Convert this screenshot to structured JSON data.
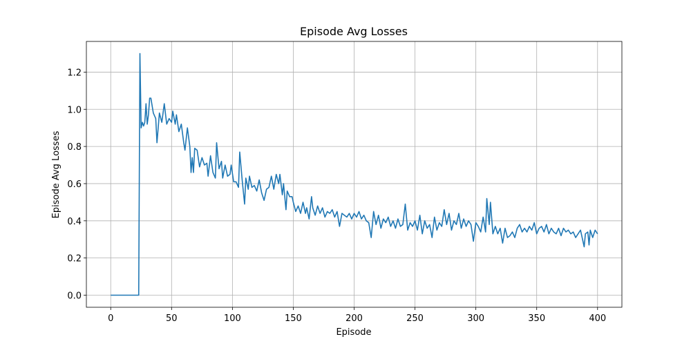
{
  "chart_data": {
    "type": "line",
    "title": "Episode Avg Losses",
    "xlabel": "Episode",
    "ylabel": "Episode Avg Losses",
    "x": [
      0,
      23,
      24,
      25,
      26,
      27,
      28,
      29,
      30,
      31,
      32,
      33,
      35,
      37,
      38,
      40,
      42,
      44,
      46,
      48,
      50,
      51,
      53,
      54,
      56,
      58,
      60,
      61,
      63,
      65,
      66,
      67,
      68,
      69,
      71,
      73,
      75,
      77,
      79,
      80,
      82,
      84,
      86,
      87,
      89,
      91,
      92,
      94,
      96,
      98,
      99,
      101,
      103,
      105,
      106,
      108,
      110,
      111,
      113,
      114,
      116,
      118,
      120,
      122,
      124,
      126,
      128,
      130,
      132,
      134,
      136,
      138,
      139,
      141,
      142,
      144,
      145,
      147,
      149,
      150,
      152,
      154,
      156,
      158,
      160,
      161,
      163,
      165,
      166,
      168,
      170,
      172,
      174,
      176,
      178,
      180,
      182,
      184,
      186,
      188,
      190,
      192,
      194,
      196,
      198,
      200,
      202,
      204,
      206,
      208,
      210,
      212,
      214,
      216,
      218,
      220,
      222,
      224,
      226,
      228,
      230,
      232,
      234,
      236,
      238,
      240,
      242,
      244,
      246,
      248,
      250,
      252,
      254,
      256,
      258,
      260,
      262,
      264,
      266,
      268,
      270,
      272,
      274,
      276,
      278,
      280,
      282,
      284,
      286,
      288,
      290,
      292,
      294,
      296,
      298,
      300,
      302,
      304,
      306,
      308,
      309,
      311,
      312,
      314,
      316,
      318,
      320,
      322,
      324,
      326,
      328,
      330,
      332,
      334,
      336,
      338,
      340,
      342,
      344,
      346,
      348,
      350,
      352,
      354,
      356,
      358,
      360,
      362,
      364,
      366,
      368,
      370,
      372,
      374,
      376,
      378,
      380,
      382,
      384,
      386,
      388,
      389,
      390,
      392,
      393,
      394,
      396,
      398,
      400
    ],
    "series": [
      {
        "name": "Episode Avg Losses",
        "color": "#1f77b4",
        "values": [
          0,
          0,
          1.3,
          0.9,
          0.93,
          0.91,
          0.93,
          1.03,
          0.92,
          0.97,
          1.06,
          1.06,
          0.98,
          0.95,
          0.82,
          0.98,
          0.93,
          1.03,
          0.92,
          0.95,
          0.93,
          0.99,
          0.92,
          0.97,
          0.88,
          0.92,
          0.82,
          0.78,
          0.9,
          0.8,
          0.66,
          0.74,
          0.66,
          0.79,
          0.78,
          0.69,
          0.74,
          0.7,
          0.71,
          0.64,
          0.75,
          0.66,
          0.63,
          0.82,
          0.68,
          0.72,
          0.63,
          0.7,
          0.64,
          0.65,
          0.7,
          0.61,
          0.61,
          0.58,
          0.77,
          0.62,
          0.49,
          0.63,
          0.57,
          0.64,
          0.58,
          0.59,
          0.56,
          0.62,
          0.55,
          0.51,
          0.57,
          0.58,
          0.64,
          0.57,
          0.65,
          0.6,
          0.65,
          0.54,
          0.6,
          0.46,
          0.56,
          0.53,
          0.53,
          0.5,
          0.45,
          0.48,
          0.44,
          0.5,
          0.44,
          0.47,
          0.41,
          0.53,
          0.47,
          0.43,
          0.48,
          0.44,
          0.47,
          0.42,
          0.45,
          0.44,
          0.46,
          0.42,
          0.45,
          0.37,
          0.44,
          0.43,
          0.42,
          0.44,
          0.41,
          0.44,
          0.42,
          0.45,
          0.41,
          0.43,
          0.4,
          0.39,
          0.31,
          0.45,
          0.38,
          0.43,
          0.36,
          0.41,
          0.39,
          0.42,
          0.37,
          0.4,
          0.36,
          0.41,
          0.37,
          0.38,
          0.49,
          0.35,
          0.39,
          0.37,
          0.4,
          0.35,
          0.43,
          0.33,
          0.4,
          0.36,
          0.38,
          0.31,
          0.42,
          0.35,
          0.39,
          0.37,
          0.46,
          0.38,
          0.44,
          0.35,
          0.4,
          0.38,
          0.44,
          0.36,
          0.41,
          0.37,
          0.4,
          0.38,
          0.29,
          0.39,
          0.37,
          0.34,
          0.42,
          0.34,
          0.52,
          0.38,
          0.5,
          0.33,
          0.37,
          0.33,
          0.36,
          0.28,
          0.36,
          0.31,
          0.32,
          0.34,
          0.31,
          0.36,
          0.38,
          0.34,
          0.36,
          0.34,
          0.37,
          0.35,
          0.39,
          0.33,
          0.36,
          0.37,
          0.34,
          0.38,
          0.33,
          0.36,
          0.34,
          0.33,
          0.36,
          0.32,
          0.36,
          0.34,
          0.35,
          0.33,
          0.34,
          0.31,
          0.33,
          0.35,
          0.29,
          0.26,
          0.33,
          0.34,
          0.27,
          0.35,
          0.31,
          0.35,
          0.33
        ]
      }
    ],
    "xlim": [
      -20,
      420
    ],
    "ylim": [
      -0.065,
      1.365
    ],
    "xticks": [
      0,
      50,
      100,
      150,
      200,
      250,
      300,
      350,
      400
    ],
    "yticks": [
      {
        "value": 0,
        "label": "0.0"
      },
      0.2,
      0.4,
      0.6,
      0.8,
      {
        "value": 1,
        "label": "1.0"
      },
      1.2
    ],
    "grid": true
  }
}
